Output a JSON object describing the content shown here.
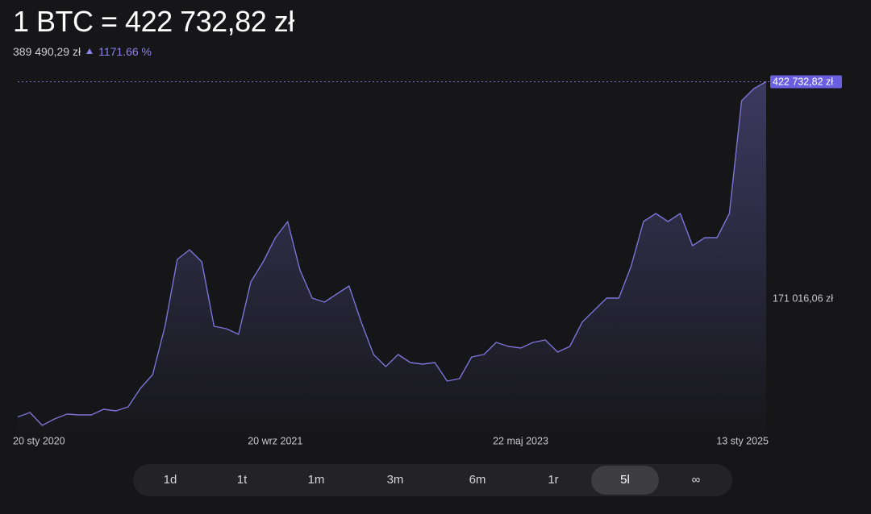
{
  "header": {
    "title": "1 BTC = 422 732,82 zł",
    "reference_value": "389 490,29 zł",
    "change": "1171.66 %"
  },
  "chart_data": {
    "type": "line",
    "categories": [
      "20 sty 2020",
      null,
      null,
      null,
      null,
      null,
      null,
      null,
      null,
      null,
      null,
      null,
      null,
      null,
      null,
      null,
      null,
      null,
      null,
      null,
      "20 wrz 2021",
      null,
      null,
      null,
      null,
      null,
      null,
      null,
      null,
      null,
      null,
      null,
      null,
      null,
      null,
      null,
      null,
      null,
      null,
      null,
      "22 maj 2023",
      null,
      null,
      null,
      null,
      null,
      null,
      null,
      null,
      null,
      null,
      null,
      null,
      null,
      null,
      null,
      null,
      null,
      null,
      null,
      "13 sty 2025",
      null
    ],
    "series": [
      {
        "name": "BTC",
        "color": "#7b73d6",
        "values": [
          33240,
          38380,
          23400,
          30890,
          36510,
          35570,
          35570,
          42130,
          40250,
          44940,
          66470,
          82380,
          138550,
          216250,
          227490,
          213450,
          138550,
          135740,
          129190,
          190040,
          213450,
          241530,
          260250,
          204090,
          171320,
          166640,
          176000,
          185360,
          143230,
          105790,
          91750,
          105790,
          96430,
          94560,
          96430,
          74900,
          77700,
          103000,
          105790,
          119830,
          115150,
          113280,
          119830,
          122640,
          108600,
          115150,
          143230,
          157280,
          171320,
          171320,
          208770,
          260250,
          269620,
          260250,
          269620,
          232170,
          241530,
          241530,
          269620,
          400680,
          414720,
          422732.82
        ]
      }
    ],
    "ylim": [
      0,
      440000
    ],
    "yticks": [
      {
        "value": 171016.06,
        "label": "171 016,06 zł"
      },
      {
        "value": 422732.82,
        "label": "422 732,82 zł"
      }
    ],
    "grid": false
  },
  "range_buttons": [
    "1d",
    "1t",
    "1m",
    "3m",
    "6m",
    "1r",
    "5l",
    "∞"
  ]
}
